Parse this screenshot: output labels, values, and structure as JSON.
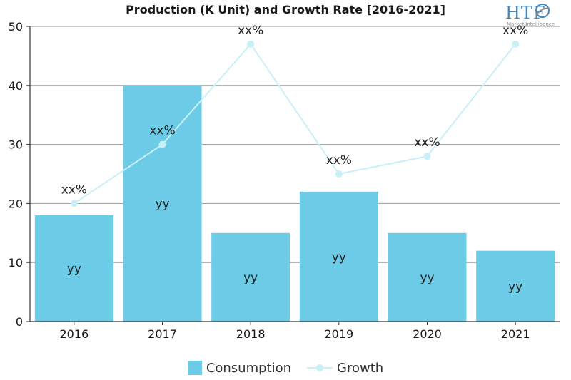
{
  "colors": {
    "bar": "#6ccbe6",
    "line": "#c8f0f6",
    "axis": "#333333",
    "grid": "#9a9a9a",
    "logo_blue": "#4a86b8",
    "logo_gray": "#8a8a8a"
  },
  "logo": {
    "text": "HTF",
    "subtext": "Market Intelligence"
  },
  "chart_data": {
    "type": "bar",
    "title": "Production (K Unit) and Growth Rate [2016-2021]",
    "categories": [
      "2016",
      "2017",
      "2018",
      "2019",
      "2020",
      "2021"
    ],
    "ylim": [
      0,
      50
    ],
    "yticks": [
      "0",
      "10",
      "20",
      "30",
      "40",
      "50"
    ],
    "grid": true,
    "legend_position": "bottom",
    "series": [
      {
        "name": "Consumption",
        "type": "bar",
        "values": [
          18,
          40,
          15,
          22,
          15,
          12
        ],
        "labels": [
          "yy",
          "yy",
          "yy",
          "yy",
          "yy",
          "yy"
        ]
      },
      {
        "name": "Growth",
        "type": "line",
        "values": [
          20,
          30,
          47,
          25,
          28,
          47
        ],
        "labels": [
          "xx%",
          "xx%",
          "xx%",
          "xx%",
          "xx%",
          "xx%"
        ]
      }
    ]
  }
}
